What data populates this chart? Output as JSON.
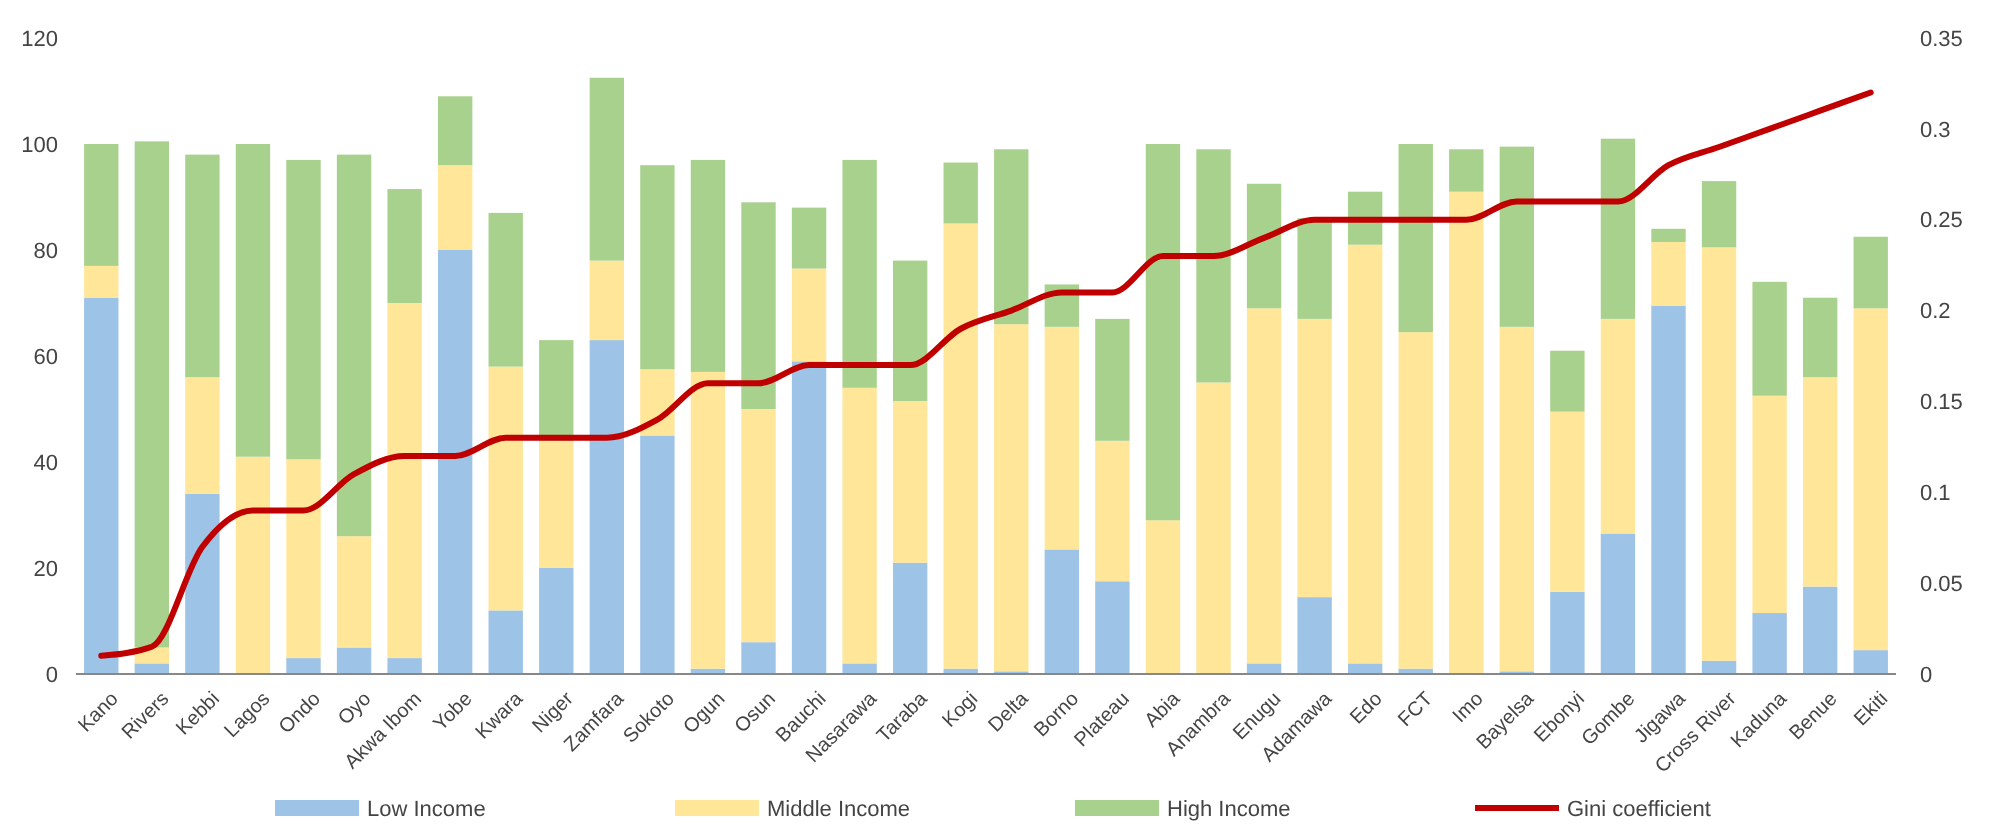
{
  "chart_data": {
    "type": "bar",
    "stacked": true,
    "categories": [
      "Kano",
      "Rivers",
      "Kebbi",
      "Lagos",
      "Ondo",
      "Oyo",
      "Akwa Ibom",
      "Yobe",
      "Kwara",
      "Niger",
      "Zamfara",
      "Sokoto",
      "Ogun",
      "Osun",
      "Bauchi",
      "Nasarawa",
      "Taraba",
      "Kogi",
      "Delta",
      "Borno",
      "Plateau",
      "Abia",
      "Anambra",
      "Enugu",
      "Adamawa",
      "Edo",
      "FCT",
      "Imo",
      "Bayelsa",
      "Ebonyi",
      "Gombe",
      "Jigawa",
      "Cross River",
      "Kaduna",
      "Benue",
      "Ekiti"
    ],
    "series": [
      {
        "name": "Low Income",
        "color": "#9dc3e6",
        "values": [
          71,
          2,
          34,
          0,
          3,
          5,
          3,
          80,
          12,
          20,
          63,
          45,
          1,
          6,
          59,
          2,
          21,
          1,
          0.5,
          23.5,
          17.5,
          0,
          0,
          2,
          14.5,
          2,
          1,
          0,
          0.5,
          15.5,
          26.5,
          69.5,
          2.5,
          11.5,
          16.5,
          4.5
        ]
      },
      {
        "name": "Middle Income",
        "color": "#ffe699",
        "values": [
          6,
          3,
          22,
          41,
          37.5,
          21,
          67,
          16,
          46,
          24,
          15,
          12.5,
          56,
          44,
          17.5,
          52,
          30.5,
          84,
          65.5,
          42,
          26.5,
          29,
          55,
          67,
          52.5,
          79,
          63.5,
          91,
          65,
          34,
          40.5,
          12,
          78,
          41,
          39.5,
          64.5
        ]
      },
      {
        "name": "High Income",
        "color": "#a9d18e",
        "values": [
          23,
          95.5,
          42,
          59,
          56.5,
          72,
          21.5,
          13,
          29,
          19,
          34.5,
          38.5,
          40,
          39,
          11.5,
          43,
          26.5,
          11.5,
          33,
          8,
          23,
          71,
          44,
          23.5,
          19,
          10,
          35.5,
          8,
          34,
          11.5,
          34,
          2.5,
          12.5,
          21.5,
          15,
          13.5
        ]
      },
      {
        "name": "Gini coefficient",
        "type": "line",
        "axis": "y2",
        "color": "#c00000",
        "values": [
          0.01,
          0.015,
          0.07,
          0.09,
          0.09,
          0.11,
          0.12,
          0.12,
          0.13,
          0.13,
          0.13,
          0.14,
          0.16,
          0.16,
          0.17,
          0.17,
          0.17,
          0.19,
          0.2,
          0.21,
          0.21,
          0.23,
          0.23,
          0.24,
          0.25,
          0.25,
          0.25,
          0.25,
          0.26,
          0.26,
          0.26,
          0.28,
          0.29,
          0.3,
          0.31,
          0.32
        ]
      }
    ],
    "ylim": [
      0,
      120
    ],
    "yticks": [
      0,
      20,
      40,
      60,
      80,
      100,
      120
    ],
    "y2lim": [
      0,
      0.35
    ],
    "y2ticks": [
      0,
      0.05,
      0.1,
      0.15,
      0.2,
      0.25,
      0.3,
      0.35
    ],
    "grid": false,
    "legend": "bottom",
    "marker": "none",
    "line_style": "solid"
  }
}
